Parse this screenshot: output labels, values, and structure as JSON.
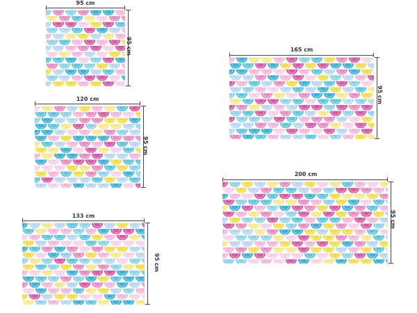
{
  "panels": [
    {
      "id": "95",
      "width_label": "95 cm",
      "height_label": "95 cm"
    },
    {
      "id": "120",
      "width_label": "120 cm",
      "height_label": "95 cm"
    },
    {
      "id": "133",
      "width_label": "133 cm",
      "height_label": "95 cm"
    },
    {
      "id": "165",
      "width_label": "165 cm",
      "height_label": "95 cm"
    },
    {
      "id": "200",
      "width_label": "200 cm",
      "height_label": "95 cm"
    }
  ],
  "pattern": {
    "name": "mermaid-scale",
    "colors": [
      "#3fb3d6",
      "#5fc6e0",
      "#8fd3ea",
      "#d75aa6",
      "#e98cc4",
      "#f3b7dc",
      "#f2dd4b",
      "#f7e88a",
      "#b8d7f0",
      "#f5d2e8"
    ]
  }
}
